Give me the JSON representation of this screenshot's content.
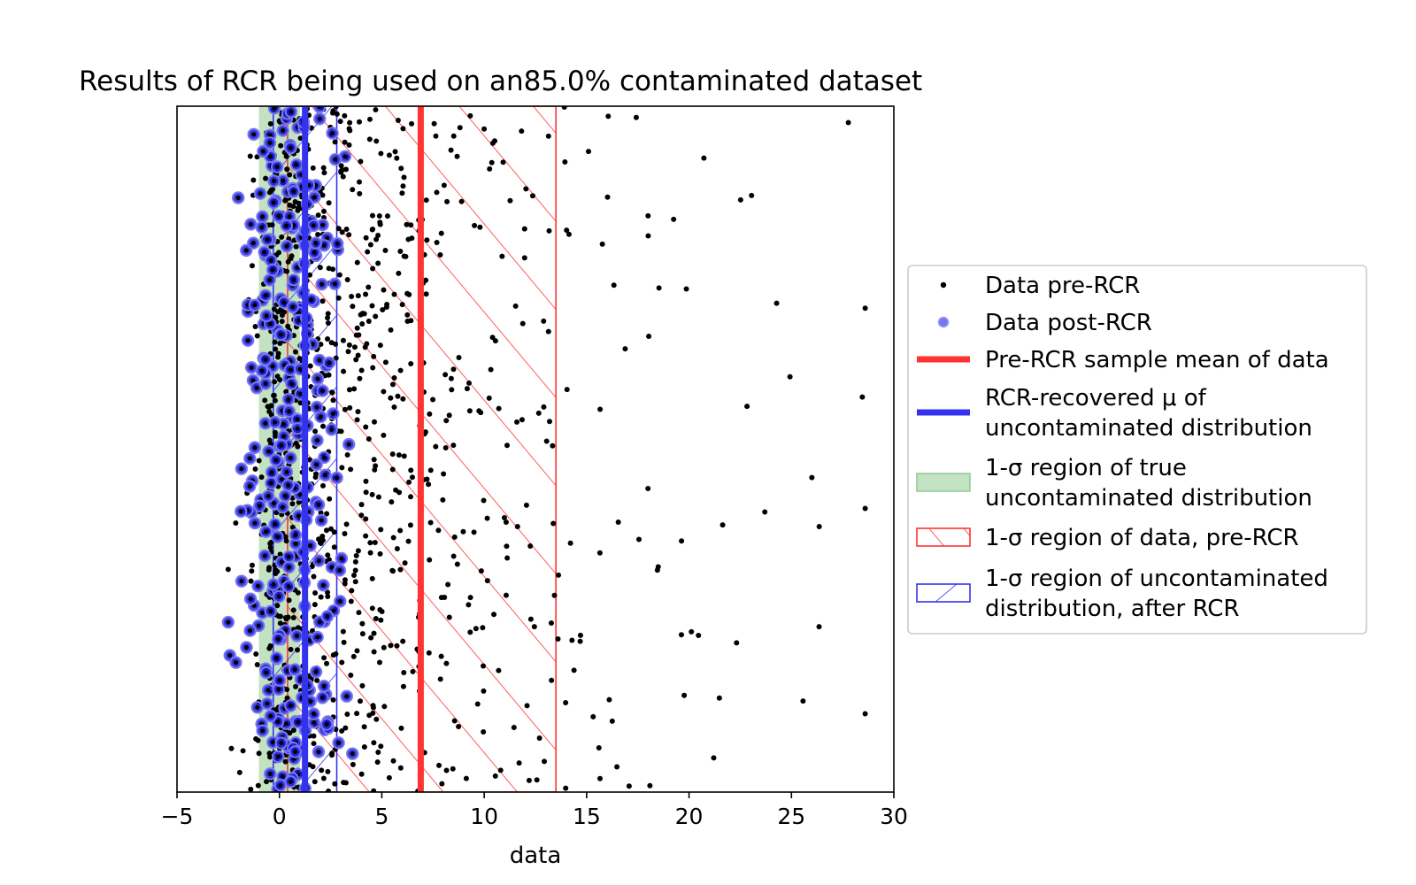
{
  "chart_data": {
    "type": "scatter",
    "title": "Results of RCR being used on an85.0% contaminated dataset",
    "xlabel": "data",
    "ylabel": "",
    "xlim": [
      -5,
      30
    ],
    "xticks": [
      "−5",
      "0",
      "5",
      "10",
      "15",
      "20",
      "25",
      "30"
    ],
    "xtick_values": [
      -5,
      0,
      5,
      10,
      15,
      20,
      25,
      30
    ],
    "y_axis_visible": false,
    "grid": false,
    "legend_position": "right, outside plot",
    "series": [
      {
        "name": "Data pre-RCR",
        "kind": "points",
        "color": "#000000",
        "x_range": [
          -2.5,
          28.6
        ],
        "approx_count": 1000
      },
      {
        "name": "Data post-RCR",
        "kind": "points",
        "color": "#0000cc",
        "x_range": [
          -2.5,
          4.1
        ],
        "approx_count": 300
      }
    ],
    "markers": {
      "pre_rcr_mean": {
        "x": 6.9,
        "color": "#ff3333"
      },
      "rcr_mu": {
        "x": 1.25,
        "color": "#3333ee"
      },
      "true_sigma_region": [
        -1.0,
        1.0
      ],
      "pre_rcr_sigma_region": [
        0.4,
        13.5
      ],
      "post_rcr_sigma_region": [
        -0.3,
        2.8
      ]
    },
    "legend": [
      {
        "label": "Data pre-RCR",
        "symbol": "dot",
        "color": "#000000"
      },
      {
        "label": "Data post-RCR",
        "symbol": "circle",
        "color": "#5555ee"
      },
      {
        "label": "Pre-RCR sample mean of data",
        "symbol": "thick-line",
        "color": "#ff3333"
      },
      {
        "label": "RCR-recovered μ of uncontaminated distribution",
        "symbol": "thick-line",
        "color": "#3333ee",
        "lines": [
          "RCR-recovered μ of",
          "uncontaminated distribution"
        ]
      },
      {
        "label": "1-σ region of true uncontaminated distribution",
        "symbol": "filled-box",
        "color": "#8fcb8f",
        "lines": [
          "1-σ region of true",
          "uncontaminated distribution"
        ]
      },
      {
        "label": "1-σ region of data, pre-RCR",
        "symbol": "hatch-box",
        "color": "#ff3333"
      },
      {
        "label": "1-σ region of uncontaminated distribution, after RCR",
        "symbol": "backhatch-box",
        "color": "#3333ee",
        "lines": [
          "1-σ region of uncontaminated",
          "distribution, after RCR"
        ]
      }
    ]
  }
}
